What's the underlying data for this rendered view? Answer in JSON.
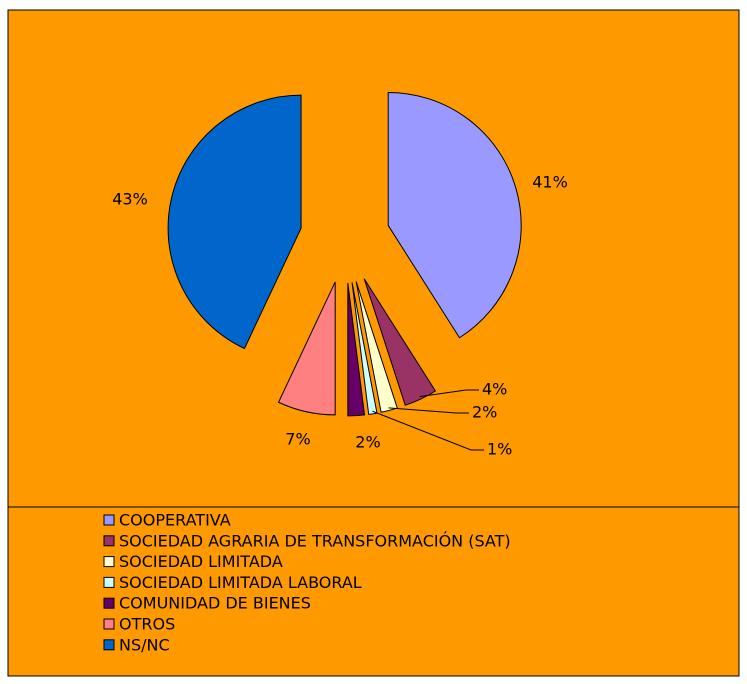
{
  "chart_data": {
    "type": "pie",
    "categories": [
      "COOPERATIVA",
      "SOCIEDAD AGRARIA DE TRANSFORMACIÓN (SAT)",
      "SOCIEDAD LIMITADA",
      "SOCIEDAD LIMITADA LABORAL",
      "COMUNIDAD DE BIENES",
      "OTROS",
      "NS/NC"
    ],
    "values": [
      41,
      4,
      2,
      1,
      2,
      7,
      43
    ],
    "value_labels": [
      "41%",
      "4%",
      "2%",
      "1%",
      "2%",
      "7%",
      "43%"
    ],
    "colors": [
      "#9999ff",
      "#993366",
      "#ffffcc",
      "#ccffff",
      "#660066",
      "#ff8080",
      "#0066cc"
    ],
    "legend": "bottom"
  }
}
